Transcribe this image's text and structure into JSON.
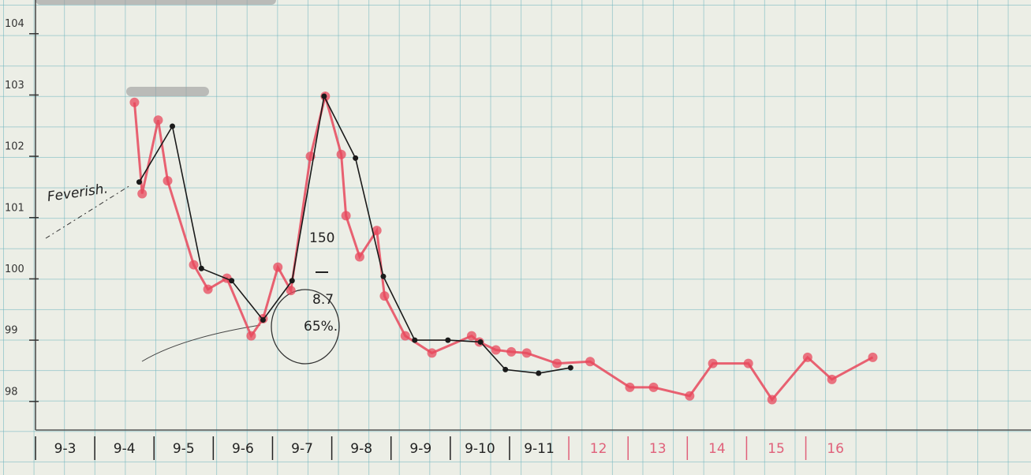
{
  "chart_data": {
    "type": "line",
    "xlim": [
      3,
      19.8
    ],
    "ylim": [
      96.8,
      104.55
    ],
    "yticks": [
      98,
      99,
      100,
      101,
      102,
      103,
      104
    ],
    "categories": [
      "9-3",
      "9-4",
      "9-5",
      "9-6",
      "9-7",
      "9-8",
      "9-9",
      "9-10",
      "9-11",
      "12",
      "13",
      "14",
      "15",
      "16"
    ],
    "category_colors": [
      "#222222",
      "#222222",
      "#222222",
      "#222222",
      "#222222",
      "#222222",
      "#222222",
      "#222222",
      "#222222",
      "#e0607a",
      "#e0607a",
      "#e0607a",
      "#e0607a",
      "#e0607a"
    ],
    "annotations": [
      "Feverish.",
      "150",
      "8.7",
      "65%."
    ],
    "series": [
      {
        "color": "#e8485c",
        "x": [
          4.67,
          4.8,
          5.07,
          5.23,
          5.67,
          5.91,
          6.23,
          6.64,
          6.84,
          7.09,
          7.31,
          7.64,
          7.89,
          8.16,
          8.24,
          8.47,
          8.76,
          8.89,
          9.24,
          9.69,
          10.36,
          10.49,
          10.77,
          11.03,
          11.29,
          11.8,
          12.36,
          13.03,
          13.43,
          14.04,
          14.43,
          15.03,
          15.43,
          16.03,
          16.44,
          17.13
        ],
        "values": [
          102.88,
          101.39,
          102.59,
          101.6,
          100.23,
          99.83,
          100.01,
          99.07,
          99.35,
          100.19,
          99.81,
          102.0,
          102.98,
          102.03,
          101.03,
          100.36,
          100.79,
          99.72,
          99.07,
          98.79,
          99.07,
          98.97,
          98.84,
          98.81,
          98.79,
          98.62,
          98.65,
          98.23,
          98.23,
          98.09,
          98.62,
          98.62,
          98.03,
          98.72,
          98.36,
          98.72
        ]
      },
      {
        "color": "#1a1a1a",
        "x": [
          4.75,
          5.31,
          5.8,
          6.31,
          6.84,
          7.33,
          7.87,
          8.4,
          8.87,
          9.4,
          9.96,
          10.51,
          10.93,
          11.49,
          12.03
        ],
        "values": [
          101.58,
          102.49,
          100.17,
          99.97,
          99.33,
          99.97,
          102.98,
          101.97,
          100.04,
          99.0,
          99.0,
          98.97,
          98.52,
          98.46,
          98.55
        ]
      }
    ]
  }
}
